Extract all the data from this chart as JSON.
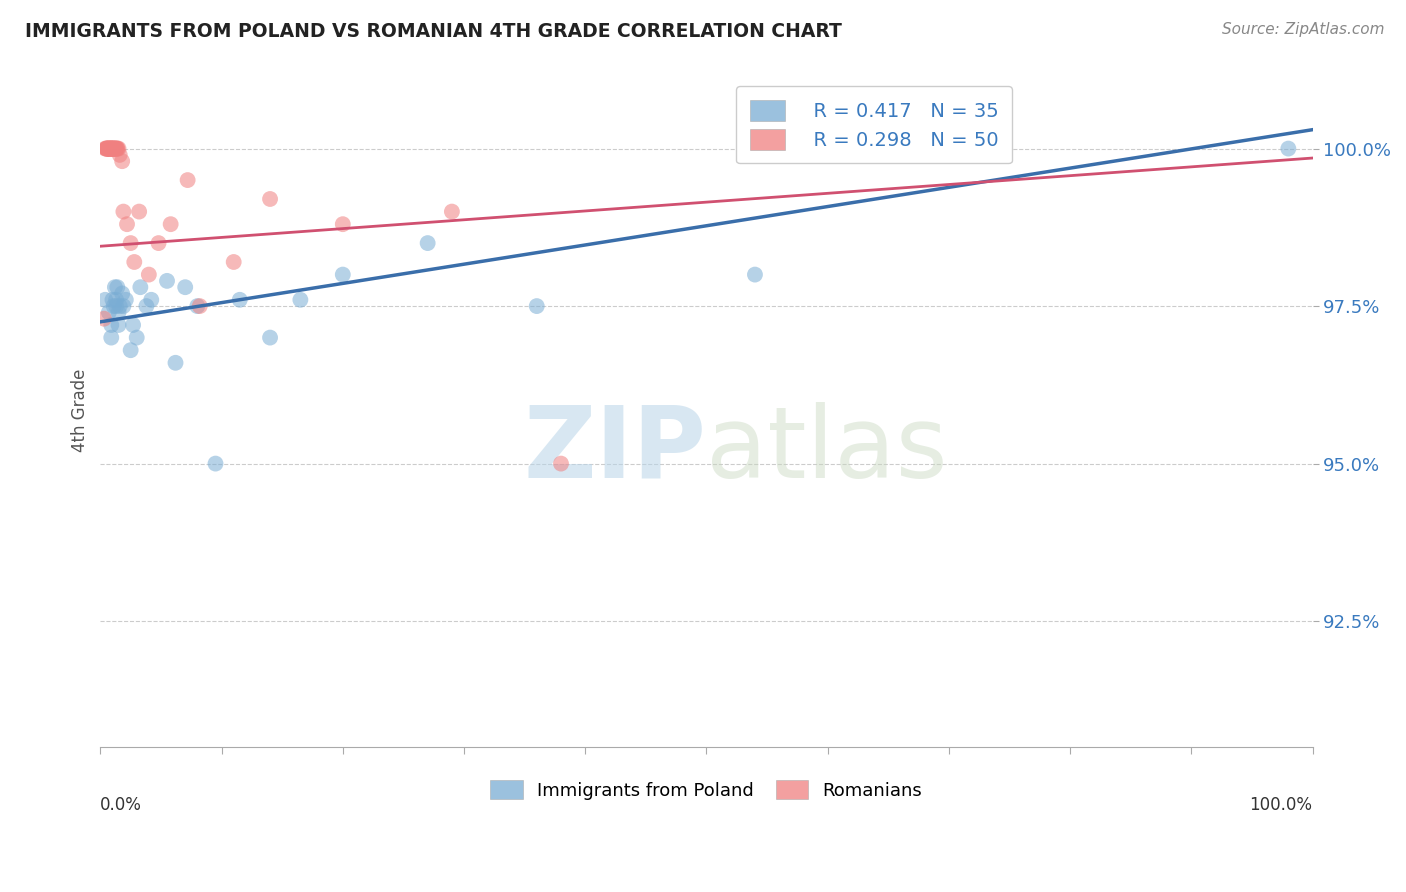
{
  "title": "IMMIGRANTS FROM POLAND VS ROMANIAN 4TH GRADE CORRELATION CHART",
  "source": "Source: ZipAtlas.com",
  "ylabel": "4th Grade",
  "ytick_labels": [
    "92.5%",
    "95.0%",
    "97.5%",
    "100.0%"
  ],
  "ytick_values": [
    0.925,
    0.95,
    0.975,
    1.0
  ],
  "xlim": [
    0.0,
    1.0
  ],
  "ylim": [
    0.905,
    1.012
  ],
  "legend_blue_r": "R = 0.417",
  "legend_blue_n": "N = 35",
  "legend_pink_r": "R = 0.298",
  "legend_pink_n": "N = 50",
  "legend_label_blue": "Immigrants from Poland",
  "legend_label_pink": "Romanians",
  "color_blue": "#7aadd4",
  "color_pink": "#f08080",
  "color_blue_line": "#3a6eaa",
  "color_pink_line": "#d05070",
  "watermark_zip": "ZIP",
  "watermark_atlas": "atlas",
  "poland_x": [
    0.004,
    0.007,
    0.009,
    0.009,
    0.01,
    0.011,
    0.012,
    0.013,
    0.013,
    0.014,
    0.015,
    0.015,
    0.016,
    0.018,
    0.019,
    0.021,
    0.025,
    0.027,
    0.03,
    0.033,
    0.038,
    0.042,
    0.055,
    0.062,
    0.07,
    0.08,
    0.095,
    0.115,
    0.14,
    0.165,
    0.2,
    0.27,
    0.36,
    0.54,
    0.98
  ],
  "poland_y": [
    0.976,
    0.974,
    0.972,
    0.97,
    0.976,
    0.975,
    0.978,
    0.976,
    0.975,
    0.978,
    0.974,
    0.972,
    0.975,
    0.977,
    0.975,
    0.976,
    0.968,
    0.972,
    0.97,
    0.978,
    0.975,
    0.976,
    0.979,
    0.966,
    0.978,
    0.975,
    0.95,
    0.976,
    0.97,
    0.976,
    0.98,
    0.985,
    0.975,
    0.98,
    1.0
  ],
  "romanian_x": [
    0.003,
    0.004,
    0.005,
    0.005,
    0.005,
    0.006,
    0.006,
    0.006,
    0.007,
    0.007,
    0.007,
    0.007,
    0.008,
    0.008,
    0.008,
    0.009,
    0.009,
    0.009,
    0.009,
    0.01,
    0.01,
    0.01,
    0.011,
    0.011,
    0.011,
    0.012,
    0.012,
    0.012,
    0.013,
    0.013,
    0.014,
    0.014,
    0.015,
    0.016,
    0.018,
    0.019,
    0.022,
    0.025,
    0.028,
    0.032,
    0.04,
    0.048,
    0.058,
    0.072,
    0.082,
    0.11,
    0.14,
    0.2,
    0.29,
    0.38
  ],
  "romanian_y": [
    0.973,
    1.0,
    1.0,
    1.0,
    1.0,
    1.0,
    1.0,
    1.0,
    1.0,
    1.0,
    1.0,
    1.0,
    1.0,
    1.0,
    1.0,
    1.0,
    1.0,
    1.0,
    1.0,
    1.0,
    1.0,
    1.0,
    1.0,
    1.0,
    1.0,
    1.0,
    1.0,
    1.0,
    1.0,
    1.0,
    1.0,
    1.0,
    1.0,
    0.999,
    0.998,
    0.99,
    0.988,
    0.985,
    0.982,
    0.99,
    0.98,
    0.985,
    0.988,
    0.995,
    0.975,
    0.982,
    0.992,
    0.988,
    0.99,
    0.95
  ],
  "blue_line_x0": 0.0,
  "blue_line_y0": 0.9725,
  "blue_line_x1": 1.0,
  "blue_line_y1": 1.003,
  "pink_line_x0": 0.0,
  "pink_line_y0": 0.9845,
  "pink_line_x1": 1.0,
  "pink_line_y1": 0.9985
}
